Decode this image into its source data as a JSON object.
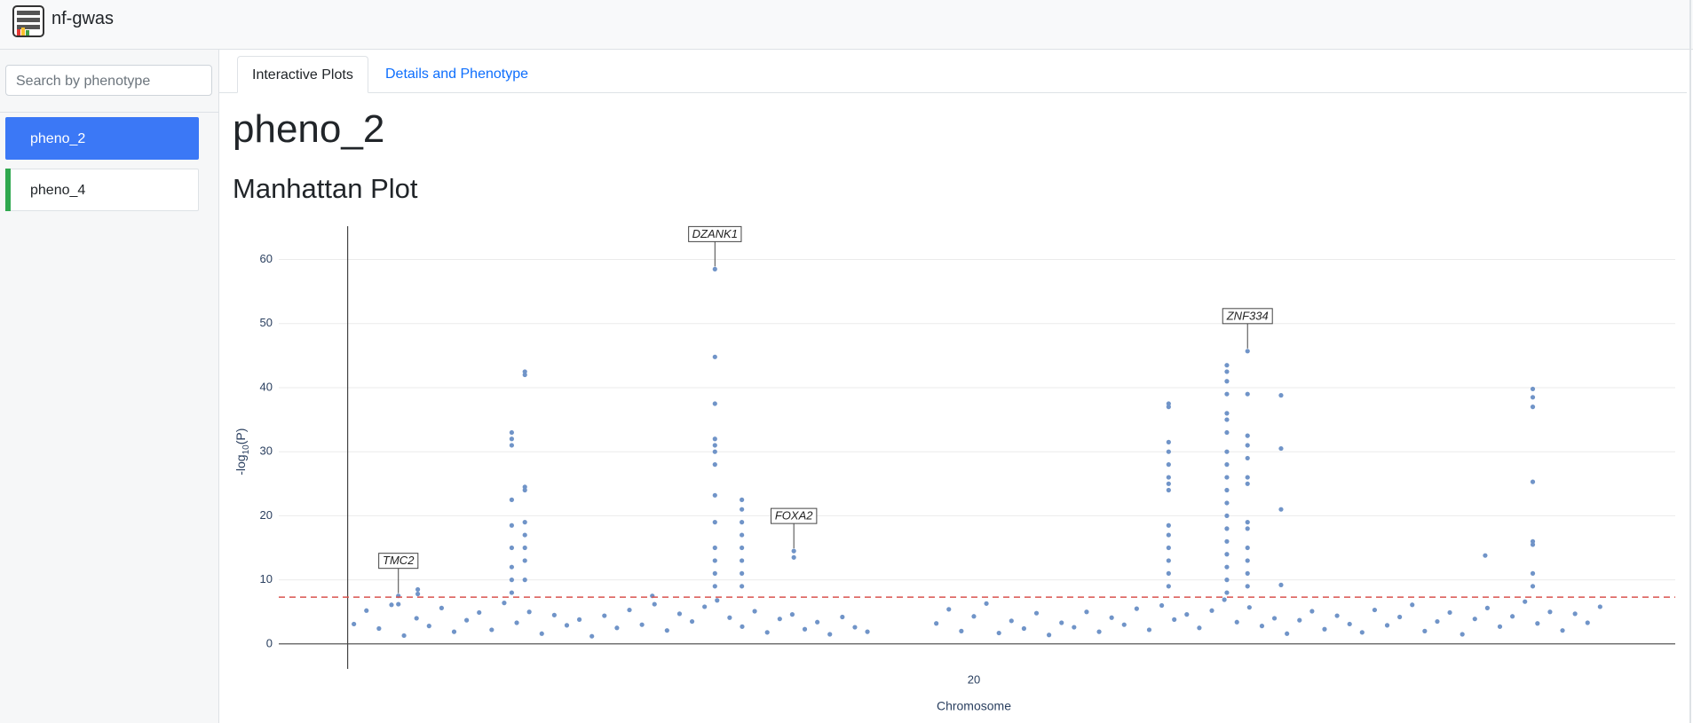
{
  "header": {
    "title": "nf-gwas"
  },
  "sidebar": {
    "search_placeholder": "Search by phenotype",
    "items": [
      "pheno_2",
      "pheno_4"
    ],
    "active": 0
  },
  "tabs": [
    "Interactive Plots",
    "Details and Phenotype"
  ],
  "page_title": "pheno_2",
  "section_title": "Manhattan Plot",
  "chart_data": {
    "type": "scatter",
    "xlabel": "Chromosome",
    "ylabel": [
      "-log",
      "10",
      "(P)"
    ],
    "xlim": [
      -2.2,
      42.4
    ],
    "ylim": [
      -3.9,
      65.2
    ],
    "xticks": [
      20
    ],
    "yticks": [
      0,
      10,
      20,
      30,
      40,
      50,
      60
    ],
    "grid": true,
    "threshold": 7.3,
    "threshold_color": "#d9534f",
    "series": [
      {
        "color": "#7094c8",
        "x": [
          0.2,
          0.6,
          1.0,
          1.4,
          1.8,
          2.2,
          2.6,
          3.0,
          3.4,
          3.8,
          4.2,
          4.6,
          5.0,
          5.4,
          5.8,
          6.2,
          6.6,
          7.0,
          7.4,
          7.8,
          8.2,
          8.6,
          9.0,
          9.4,
          9.8,
          10.2,
          10.6,
          11.0,
          11.4,
          11.8,
          12.2,
          12.6,
          13.0,
          13.4,
          13.8,
          14.2,
          14.6,
          15.0,
          15.4,
          15.8,
          16.2,
          16.6,
          18.8,
          19.2,
          19.6,
          20.0,
          20.4,
          20.8,
          21.2,
          21.6,
          22.0,
          22.4,
          22.8,
          23.2,
          23.6,
          24.0,
          24.4,
          24.8,
          25.2,
          25.6,
          26.0,
          26.4,
          26.8,
          27.2,
          27.6,
          28.0,
          28.4,
          28.8,
          29.2,
          29.6,
          30.0,
          30.4,
          30.8,
          31.2,
          31.6,
          32.0,
          32.4,
          32.8,
          33.2,
          33.6,
          34.0,
          34.4,
          34.8,
          35.2,
          35.6,
          36.0,
          36.4,
          36.8,
          37.2,
          37.6,
          38.0,
          38.4,
          38.8,
          39.2,
          39.6,
          40.0,
          1.62,
          1.62,
          2.24,
          2.24,
          5.24,
          5.24,
          5.24,
          5.24,
          5.24,
          5.24,
          5.24,
          5.24,
          5.24,
          5.66,
          5.66,
          5.66,
          5.66,
          5.66,
          5.66,
          5.66,
          5.66,
          5.66,
          9.73,
          11.73,
          11.73,
          11.73,
          11.73,
          11.73,
          11.73,
          11.73,
          11.73,
          11.73,
          11.73,
          11.73,
          11.73,
          11.73,
          12.59,
          12.59,
          12.59,
          12.59,
          12.59,
          12.59,
          12.59,
          12.59,
          14.25,
          14.25,
          26.22,
          26.22,
          26.22,
          26.22,
          26.22,
          26.22,
          26.22,
          26.22,
          26.22,
          26.22,
          26.22,
          26.22,
          26.22,
          26.22,
          28.08,
          28.08,
          28.08,
          28.08,
          28.08,
          28.08,
          28.08,
          28.08,
          28.08,
          28.08,
          28.08,
          28.08,
          28.08,
          28.08,
          28.08,
          28.08,
          28.08,
          28.08,
          28.08,
          28.74,
          28.74,
          28.74,
          28.74,
          28.74,
          28.74,
          28.74,
          28.74,
          28.74,
          28.74,
          28.74,
          28.74,
          28.74,
          29.81,
          29.81,
          29.81,
          29.81,
          36.33,
          37.85,
          37.85,
          37.85,
          37.85,
          37.85,
          37.85,
          37.85,
          37.85
        ],
        "values": [
          3.1,
          5.2,
          2.4,
          6.1,
          1.3,
          4.0,
          2.8,
          5.6,
          1.9,
          3.7,
          4.9,
          2.2,
          6.4,
          3.3,
          5.0,
          1.6,
          4.5,
          2.9,
          3.8,
          1.2,
          4.4,
          2.5,
          5.3,
          3.0,
          6.2,
          2.1,
          4.7,
          3.5,
          5.8,
          6.8,
          4.1,
          2.7,
          5.1,
          1.8,
          3.9,
          4.6,
          2.3,
          3.4,
          1.5,
          4.2,
          2.6,
          1.9,
          3.2,
          5.4,
          2.0,
          4.3,
          6.3,
          1.7,
          3.6,
          2.4,
          4.8,
          1.4,
          3.3,
          2.6,
          5.0,
          1.9,
          4.1,
          3.0,
          5.5,
          2.2,
          6.0,
          3.8,
          4.6,
          2.5,
          5.2,
          6.9,
          3.4,
          5.7,
          2.8,
          4.0,
          1.6,
          3.7,
          5.1,
          2.3,
          4.4,
          3.1,
          1.8,
          5.3,
          2.9,
          4.2,
          6.1,
          2.0,
          3.5,
          4.9,
          1.5,
          3.9,
          5.6,
          2.7,
          4.3,
          6.6,
          3.2,
          5.0,
          2.1,
          4.7,
          3.3,
          5.8,
          7.5,
          6.2,
          8.5,
          7.8,
          33,
          32,
          31,
          22.5,
          18.5,
          15,
          12,
          10,
          8,
          42.5,
          42,
          24.5,
          24,
          19,
          17,
          15,
          13,
          10,
          7.5,
          58.5,
          44.8,
          37.5,
          32,
          31,
          30,
          28,
          23.2,
          19,
          15,
          13,
          11,
          9,
          22.5,
          21,
          19,
          17,
          15,
          13,
          11,
          9,
          14.5,
          13.5,
          37.5,
          37,
          31.5,
          30,
          28,
          26,
          25,
          24,
          18.5,
          17,
          15,
          13,
          11,
          9,
          43.5,
          42.5,
          41,
          39,
          36,
          35,
          33,
          30,
          28,
          26,
          24,
          22,
          20,
          18,
          16,
          14,
          12,
          10,
          8,
          45.7,
          39,
          32.5,
          31,
          29,
          26,
          25,
          19,
          18,
          15,
          13,
          11,
          9,
          38.8,
          30.5,
          21,
          9.2,
          13.8,
          39.8,
          38.5,
          37,
          25.3,
          16,
          15.5,
          11,
          9
        ]
      }
    ],
    "annotations": [
      {
        "text": "TMC2",
        "x": 1.62,
        "y": 7.5
      },
      {
        "text": "DZANK1",
        "x": 11.73,
        "y": 58.5
      },
      {
        "text": "FOXA2",
        "x": 14.25,
        "y": 14.5
      },
      {
        "text": "ZNF334",
        "x": 28.74,
        "y": 45.7
      }
    ]
  }
}
